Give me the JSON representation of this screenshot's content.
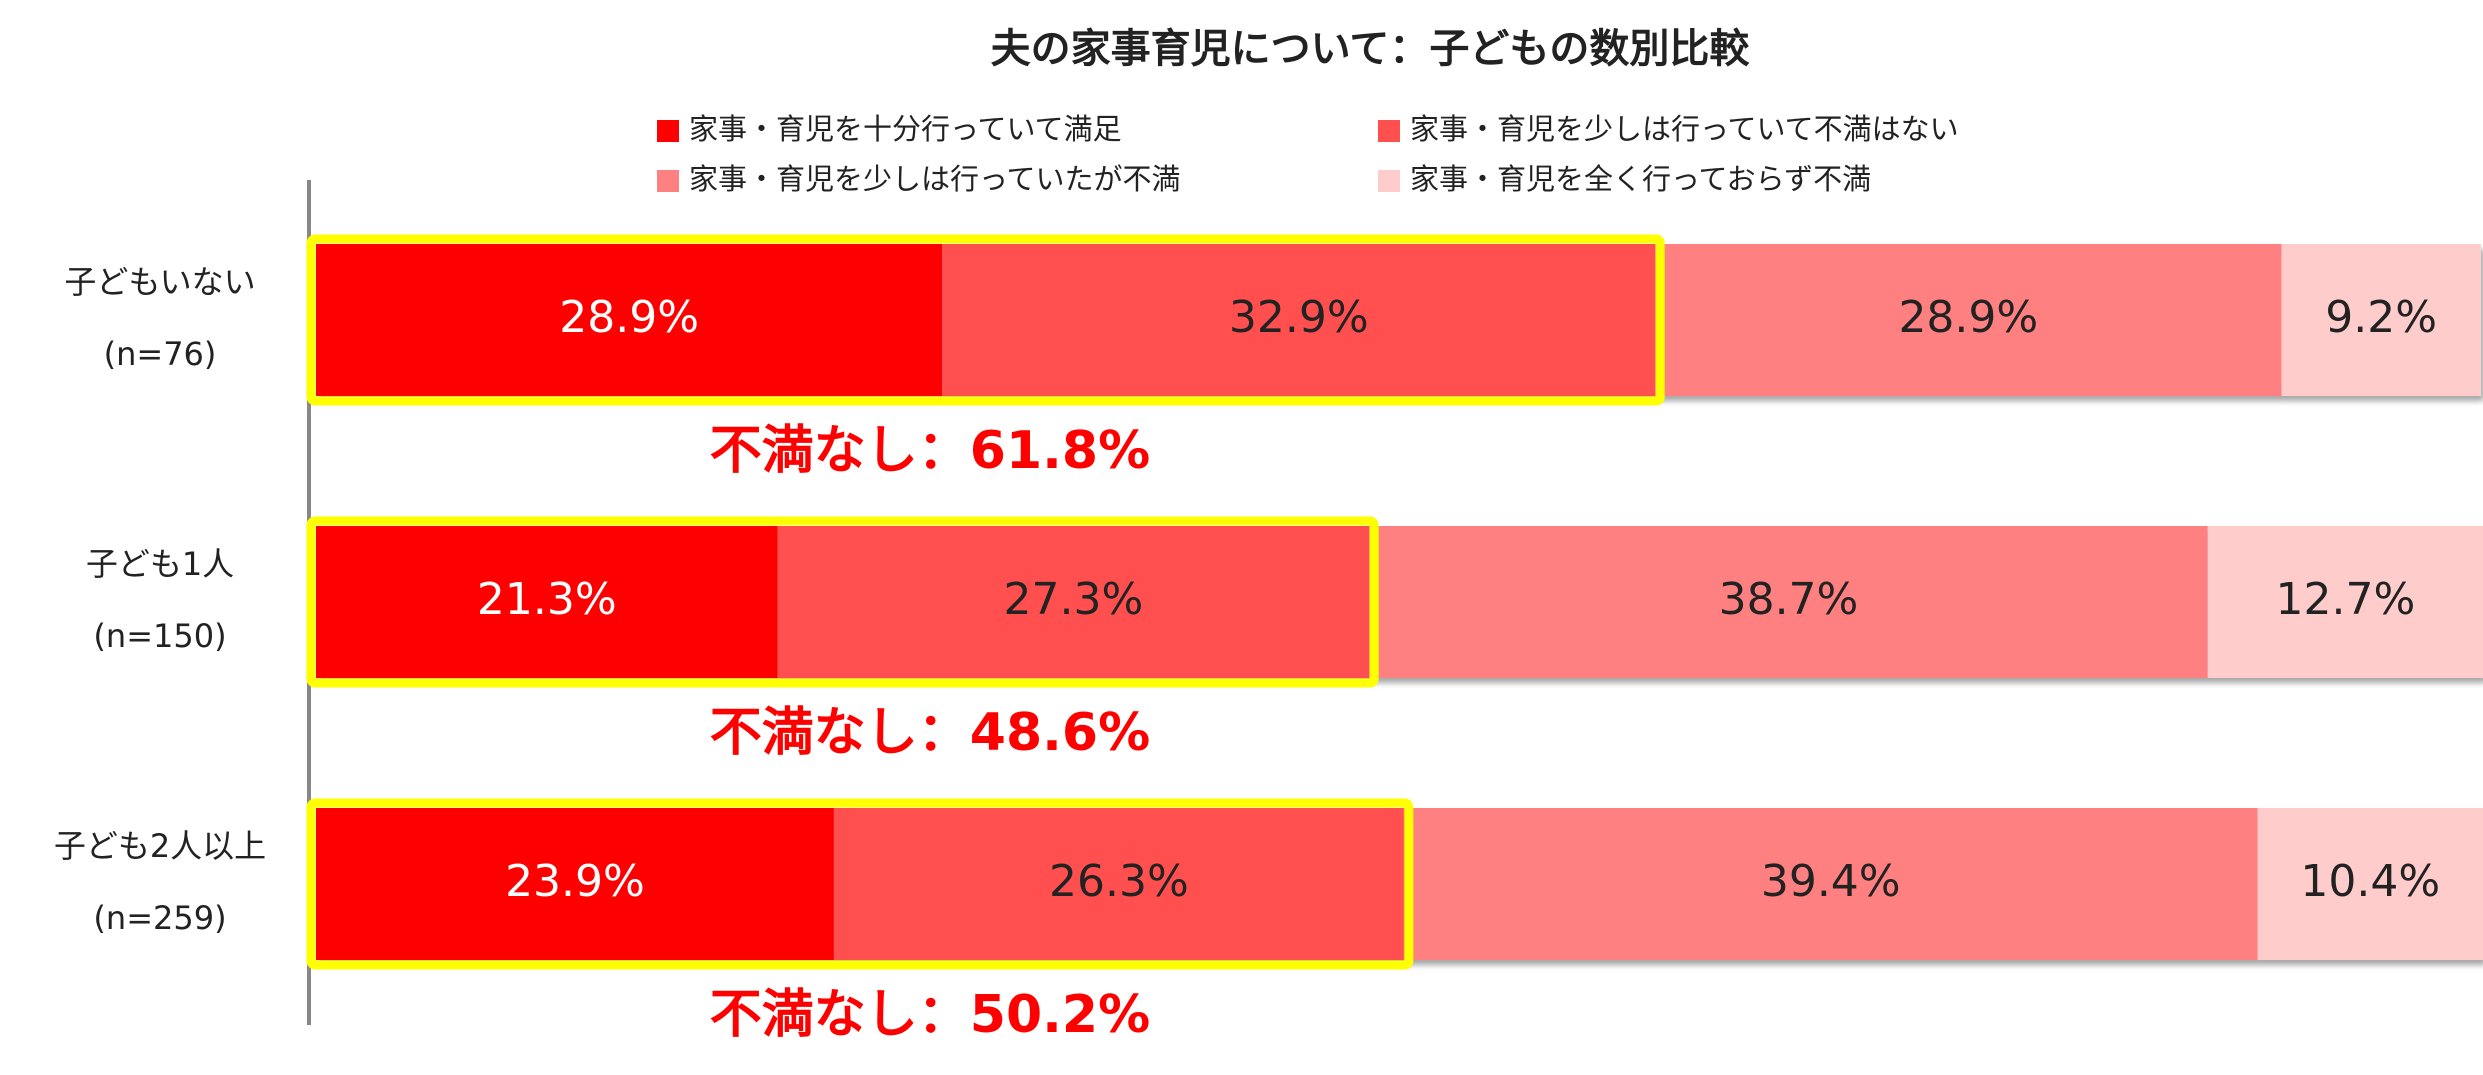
{
  "chart_data": {
    "type": "stacked-bar-horizontal",
    "title": "夫の家事育児について：子どもの数別比較",
    "categories": [
      "子どもいない",
      "子ども1人",
      "子ども2人以上"
    ],
    "sample_sizes": [
      "(n=76)",
      "(n=150)",
      "(n=259)"
    ],
    "xlim": [
      0,
      100
    ],
    "series": [
      {
        "name": "家事・育児を十分行っていて満足",
        "color": "#ff0000",
        "values": [
          28.9,
          21.3,
          23.9
        ],
        "value_labels": [
          "28.9%",
          "21.3%",
          "23.9%"
        ]
      },
      {
        "name": "家事・育児を少しは行っていて不満はない",
        "color": "#ff5050",
        "values": [
          32.9,
          27.3,
          26.3
        ],
        "value_labels": [
          "32.9%",
          "27.3%",
          "26.3%"
        ]
      },
      {
        "name": "家事・育児を少しは行っていたが不満",
        "color": "#ff8080",
        "values": [
          28.9,
          38.7,
          39.4
        ],
        "value_labels": [
          "28.9%",
          "38.7%",
          "39.4%"
        ]
      },
      {
        "name": "家事・育児を全く行っておらず不満",
        "color": "#ffcccc",
        "values": [
          9.2,
          12.7,
          10.4
        ],
        "value_labels": [
          "9.2%",
          "12.7%",
          "10.4%"
        ]
      }
    ],
    "annotations": [
      "不満なし：61.8%",
      "不満なし：48.6%",
      "不満なし：50.2%"
    ]
  }
}
